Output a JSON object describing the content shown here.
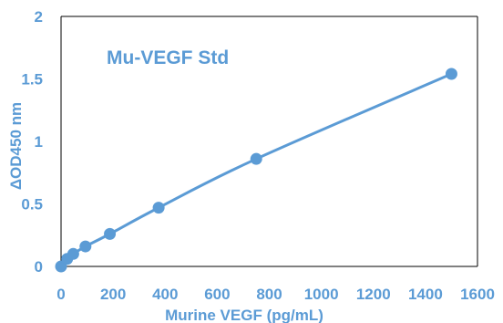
{
  "chart_data": {
    "type": "scatter",
    "title": "Mu-VEGF Std",
    "xlabel": "Murine VEGF (pg/mL)",
    "ylabel": "ΔOD450 nm",
    "xlim": [
      0,
      1600
    ],
    "ylim": [
      0,
      2
    ],
    "x_ticks": [
      "0",
      "200",
      "400",
      "600",
      "800",
      "1000",
      "1200",
      "1400",
      "1600"
    ],
    "y_ticks": [
      "0",
      "0.5",
      "1",
      "1.5",
      "2"
    ],
    "grid": false,
    "legend": "none",
    "series": [
      {
        "x": [
          0,
          23.4,
          46.9,
          93.8,
          187.5,
          375,
          750,
          1500
        ],
        "y": [
          0.0,
          0.06,
          0.1,
          0.16,
          0.26,
          0.47,
          0.86,
          1.54
        ],
        "color": "#5B9BD5",
        "smooth_line": true
      }
    ]
  }
}
